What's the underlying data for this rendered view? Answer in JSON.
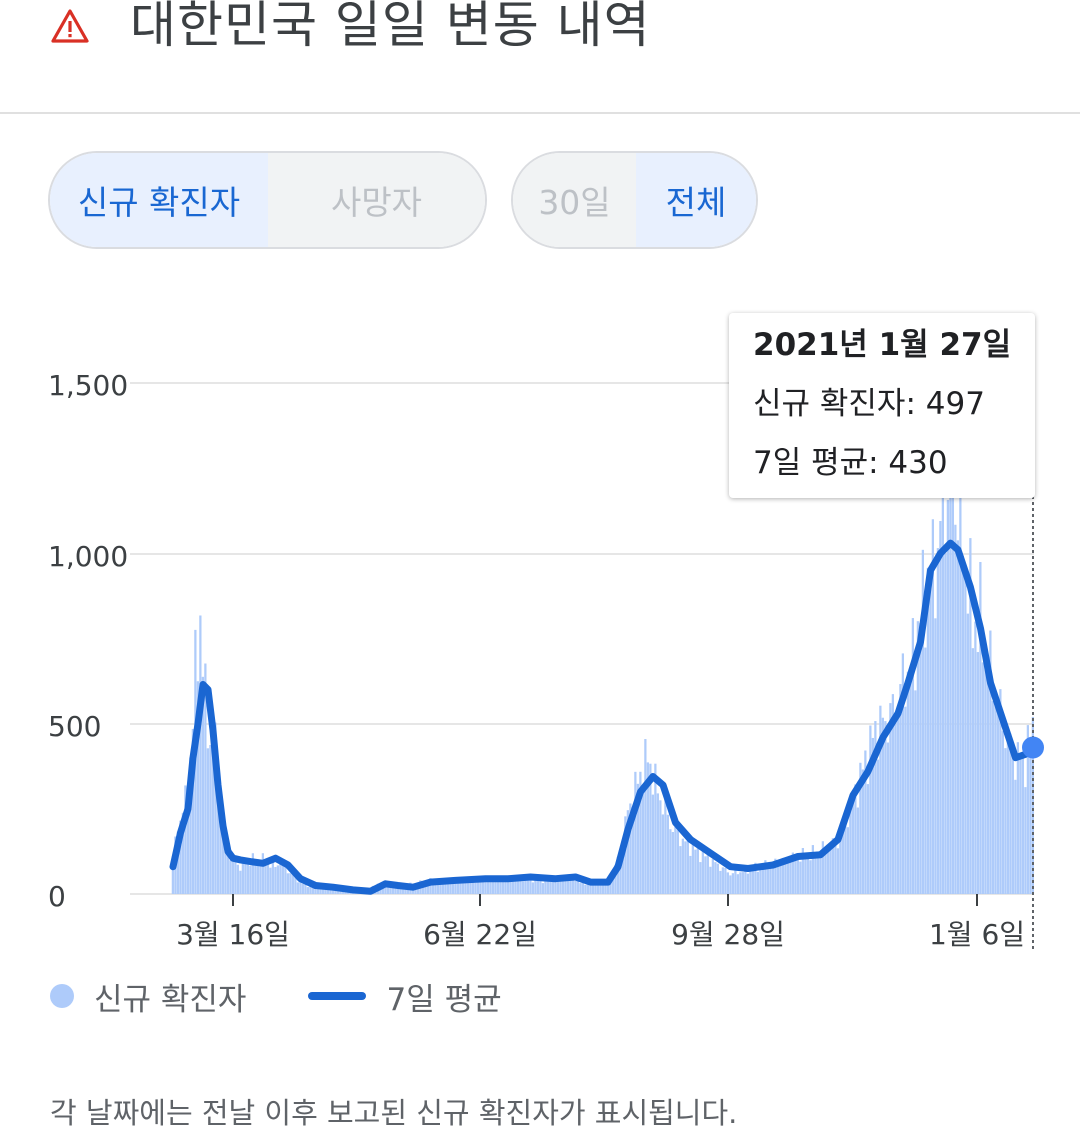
{
  "header": {
    "title": "대한민국 일일 변동 내역",
    "icon": "warning-triangle-icon",
    "icon_color": "#d93025"
  },
  "metric_toggle": {
    "options": [
      "신규 확진자",
      "사망자"
    ],
    "selected": "신규 확진자"
  },
  "range_toggle": {
    "options": [
      "30일",
      "전체"
    ],
    "selected": "전체"
  },
  "tooltip": {
    "date": "2021년 1월 27일",
    "new_cases": "신규 확진자: 497",
    "seven_day_avg": "7일 평균: 430"
  },
  "legend": {
    "bars_label": "신규 확진자",
    "line_label": "7일 평균"
  },
  "footnote": "각 날짜에는 전날 이후 보고된 신규 확진자가 표시됩니다.",
  "colors": {
    "accent": "#1a66d2",
    "bars": "#aecbfa",
    "selected_bg": "#e8f0fe",
    "grid": "#e6e6e6"
  },
  "chart_data": {
    "type": "bar",
    "x_range": [
      "2020-02-18",
      "2021-01-27"
    ],
    "ylim": [
      0,
      1600
    ],
    "y_ticks": [
      "0",
      "500",
      "1,000",
      "1,500"
    ],
    "x_tick_labels": [
      "3월 16일",
      "6월 22일",
      "9월 28일",
      "1월 6일"
    ],
    "grid": true,
    "series": [
      {
        "name": "신규 확진자",
        "type": "bar",
        "anchors": [
          [
            "2020-02-18",
            110
          ],
          [
            "2020-02-21",
            230
          ],
          [
            "2020-02-24",
            290
          ],
          [
            "2020-02-27",
            640
          ],
          [
            "2020-02-29",
            813
          ],
          [
            "2020-03-02",
            560
          ],
          [
            "2020-03-04",
            440
          ],
          [
            "2020-03-06",
            430
          ],
          [
            "2020-03-08",
            230
          ],
          [
            "2020-03-10",
            160
          ],
          [
            "2020-03-12",
            110
          ],
          [
            "2020-03-16",
            80
          ],
          [
            "2020-03-20",
            100
          ],
          [
            "2020-03-25",
            100
          ],
          [
            "2020-03-30",
            80
          ],
          [
            "2020-04-01",
            100
          ],
          [
            "2020-04-05",
            60
          ],
          [
            "2020-04-10",
            30
          ],
          [
            "2020-04-15",
            20
          ],
          [
            "2020-04-25",
            10
          ],
          [
            "2020-05-05",
            5
          ],
          [
            "2020-05-10",
            30
          ],
          [
            "2020-05-15",
            20
          ],
          [
            "2020-05-25",
            30
          ],
          [
            "2020-06-01",
            40
          ],
          [
            "2020-06-15",
            40
          ],
          [
            "2020-06-22",
            45
          ],
          [
            "2020-07-01",
            50
          ],
          [
            "2020-07-15",
            40
          ],
          [
            "2020-07-25",
            50
          ],
          [
            "2020-08-01",
            30
          ],
          [
            "2020-08-10",
            30
          ],
          [
            "2020-08-14",
            100
          ],
          [
            "2020-08-18",
            240
          ],
          [
            "2020-08-22",
            330
          ],
          [
            "2020-08-26",
            400
          ],
          [
            "2020-08-30",
            300
          ],
          [
            "2020-09-05",
            190
          ],
          [
            "2020-09-10",
            150
          ],
          [
            "2020-09-20",
            100
          ],
          [
            "2020-09-28",
            60
          ],
          [
            "2020-10-05",
            70
          ],
          [
            "2020-10-15",
            90
          ],
          [
            "2020-10-25",
            110
          ],
          [
            "2020-11-01",
            120
          ],
          [
            "2020-11-10",
            150
          ],
          [
            "2020-11-18",
            320
          ],
          [
            "2020-11-25",
            480
          ],
          [
            "2020-12-01",
            520
          ],
          [
            "2020-12-06",
            620
          ],
          [
            "2020-12-10",
            690
          ],
          [
            "2020-12-15",
            900
          ],
          [
            "2020-12-20",
            1000
          ],
          [
            "2020-12-25",
            1241
          ],
          [
            "2020-12-30",
            1050
          ],
          [
            "2021-01-03",
            800
          ],
          [
            "2021-01-06",
            800
          ],
          [
            "2021-01-10",
            650
          ],
          [
            "2021-01-15",
            500
          ],
          [
            "2021-01-20",
            400
          ],
          [
            "2021-01-24",
            390
          ],
          [
            "2021-01-27",
            497
          ]
        ]
      },
      {
        "name": "7일 평균",
        "type": "line",
        "anchors": [
          [
            "2020-02-18",
            80
          ],
          [
            "2020-02-21",
            180
          ],
          [
            "2020-02-24",
            250
          ],
          [
            "2020-02-26",
            400
          ],
          [
            "2020-02-28",
            500
          ],
          [
            "2020-03-01",
            615
          ],
          [
            "2020-03-03",
            600
          ],
          [
            "2020-03-05",
            480
          ],
          [
            "2020-03-07",
            320
          ],
          [
            "2020-03-09",
            200
          ],
          [
            "2020-03-11",
            125
          ],
          [
            "2020-03-13",
            105
          ],
          [
            "2020-03-16",
            100
          ],
          [
            "2020-03-20",
            95
          ],
          [
            "2020-03-25",
            90
          ],
          [
            "2020-03-30",
            105
          ],
          [
            "2020-04-04",
            85
          ],
          [
            "2020-04-09",
            45
          ],
          [
            "2020-04-15",
            25
          ],
          [
            "2020-04-22",
            20
          ],
          [
            "2020-04-30",
            12
          ],
          [
            "2020-05-07",
            8
          ],
          [
            "2020-05-13",
            30
          ],
          [
            "2020-05-18",
            25
          ],
          [
            "2020-05-24",
            20
          ],
          [
            "2020-05-31",
            35
          ],
          [
            "2020-06-10",
            40
          ],
          [
            "2020-06-22",
            45
          ],
          [
            "2020-07-01",
            45
          ],
          [
            "2020-07-10",
            50
          ],
          [
            "2020-07-20",
            45
          ],
          [
            "2020-07-28",
            50
          ],
          [
            "2020-08-03",
            35
          ],
          [
            "2020-08-10",
            35
          ],
          [
            "2020-08-14",
            80
          ],
          [
            "2020-08-18",
            190
          ],
          [
            "2020-08-23",
            300
          ],
          [
            "2020-08-28",
            345
          ],
          [
            "2020-09-01",
            320
          ],
          [
            "2020-09-06",
            210
          ],
          [
            "2020-09-12",
            160
          ],
          [
            "2020-09-20",
            120
          ],
          [
            "2020-09-28",
            80
          ],
          [
            "2020-10-05",
            75
          ],
          [
            "2020-10-15",
            85
          ],
          [
            "2020-10-25",
            110
          ],
          [
            "2020-11-03",
            115
          ],
          [
            "2020-11-10",
            160
          ],
          [
            "2020-11-16",
            290
          ],
          [
            "2020-11-22",
            360
          ],
          [
            "2020-11-28",
            460
          ],
          [
            "2020-12-04",
            530
          ],
          [
            "2020-12-08",
            620
          ],
          [
            "2020-12-13",
            740
          ],
          [
            "2020-12-17",
            950
          ],
          [
            "2020-12-21",
            1000
          ],
          [
            "2020-12-25",
            1030
          ],
          [
            "2020-12-28",
            1010
          ],
          [
            "2021-01-02",
            900
          ],
          [
            "2021-01-06",
            780
          ],
          [
            "2021-01-10",
            620
          ],
          [
            "2021-01-15",
            510
          ],
          [
            "2021-01-20",
            400
          ],
          [
            "2021-01-24",
            410
          ],
          [
            "2021-01-27",
            430
          ]
        ]
      }
    ],
    "selected_point": {
      "date": "2021-01-27",
      "new_cases": 497,
      "seven_day_avg": 430
    }
  }
}
